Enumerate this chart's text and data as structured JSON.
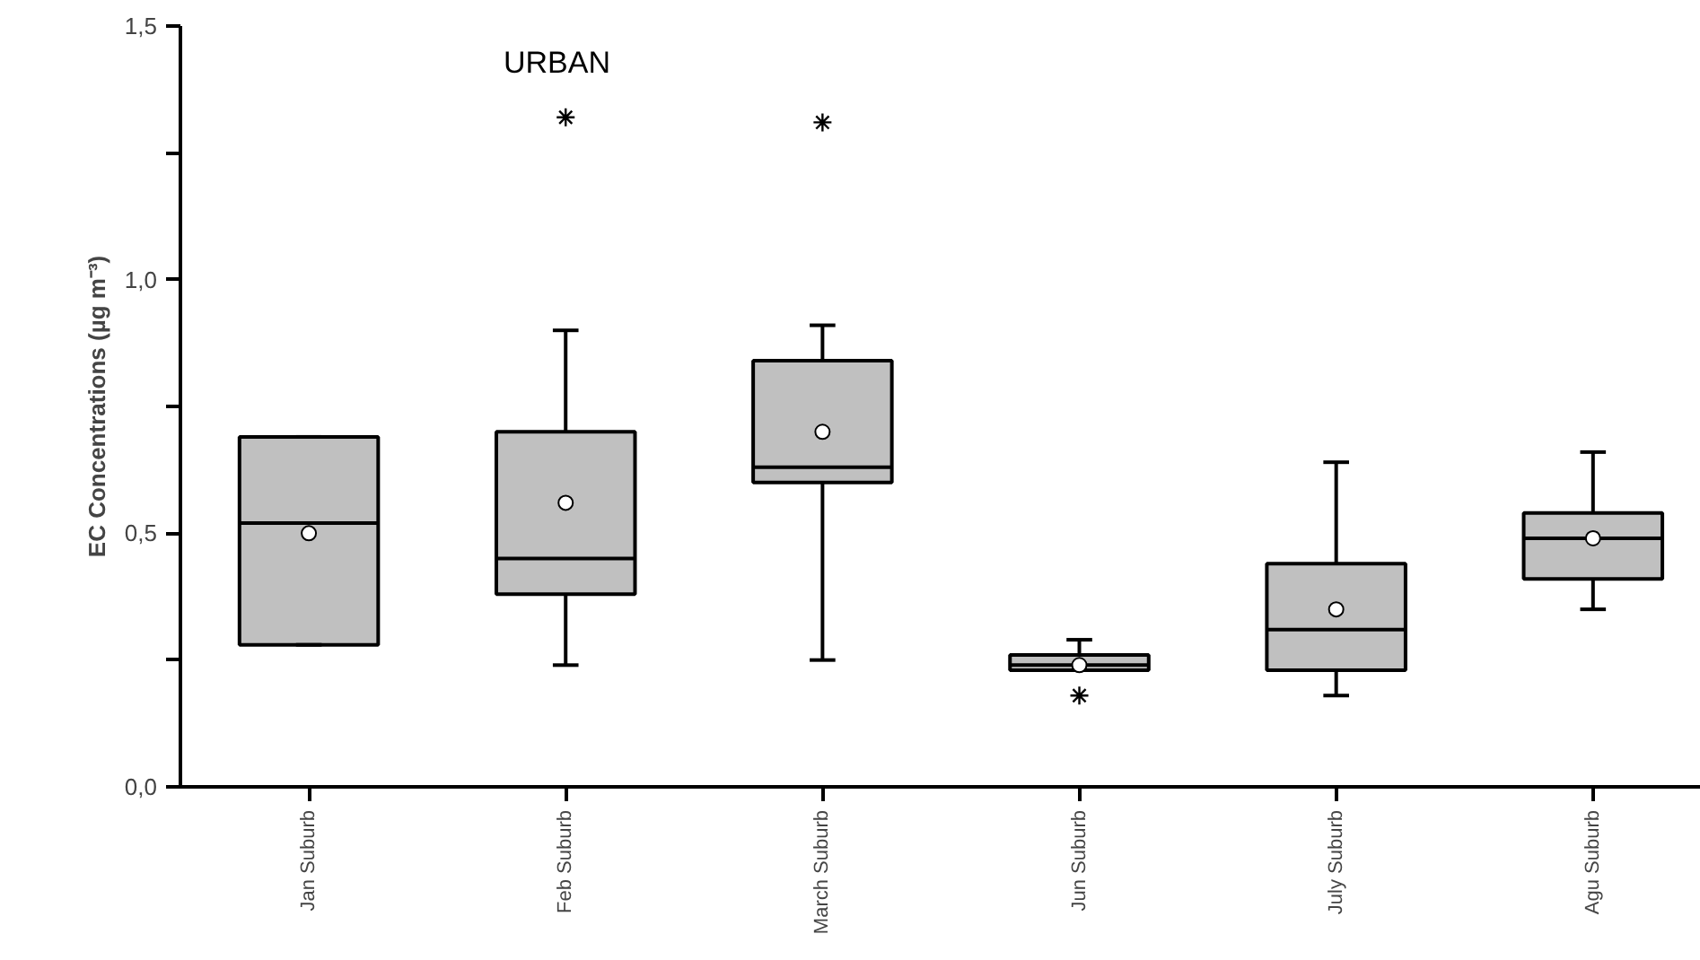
{
  "chart_data": {
    "type": "box",
    "title": "URBAN",
    "ylabel": "EC Concentrations (µg m⁻³)",
    "categories": [
      "Jan Suburb",
      "Feb Suburb",
      "March Suburb",
      "Jun Suburb",
      "July Suburb",
      "Agu Suburb"
    ],
    "color": "#c0c0c0",
    "boxes": [
      {
        "low": 0.28,
        "q1": 0.28,
        "median": 0.52,
        "q3": 0.69,
        "high": 0.69,
        "mean": 0.5
      },
      {
        "low": 0.24,
        "q1": 0.38,
        "median": 0.45,
        "q3": 0.7,
        "high": 0.9,
        "mean": 0.56,
        "outliers": [
          1.32
        ]
      },
      {
        "low": 0.25,
        "q1": 0.6,
        "median": 0.63,
        "q3": 0.84,
        "high": 0.91,
        "mean": 0.7,
        "outliers": [
          1.31
        ]
      },
      {
        "low": 0.23,
        "q1": 0.23,
        "median": 0.24,
        "q3": 0.26,
        "high": 0.29,
        "mean": 0.24,
        "outliers": [
          0.18
        ]
      },
      {
        "low": 0.18,
        "q1": 0.23,
        "median": 0.31,
        "q3": 0.44,
        "high": 0.64,
        "mean": 0.35
      },
      {
        "low": 0.35,
        "q1": 0.41,
        "median": 0.49,
        "q3": 0.54,
        "high": 0.66,
        "mean": 0.49
      }
    ],
    "ylim": [
      0,
      1.5
    ],
    "yticks": [
      {
        "value": 0,
        "label": "0,0"
      },
      {
        "value": 0.25,
        "label": null
      },
      {
        "value": 0.5,
        "label": "0,5"
      },
      {
        "value": 0.75,
        "label": null
      },
      {
        "value": 1.0,
        "label": "1,0"
      },
      {
        "value": 1.25,
        "label": null
      },
      {
        "value": 1.5,
        "label": "1,5"
      }
    ],
    "grid": false
  }
}
